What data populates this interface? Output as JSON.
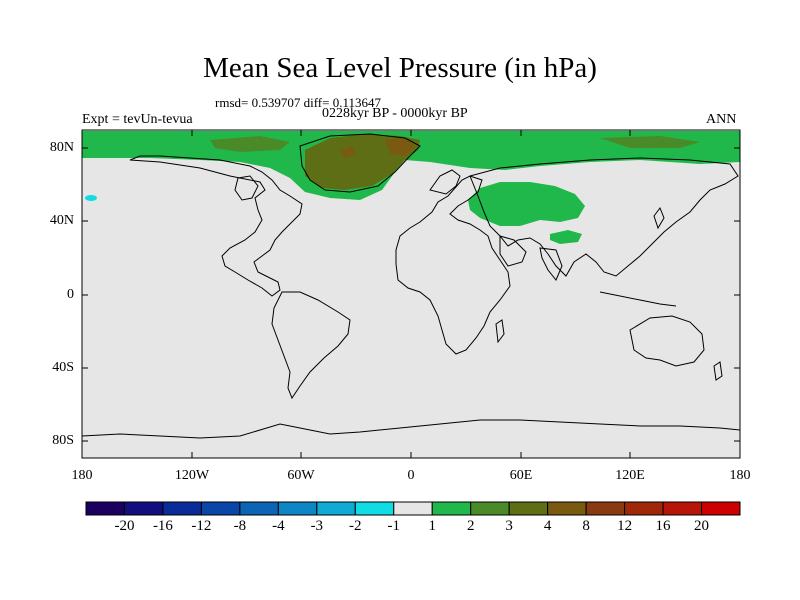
{
  "title": "Mean Sea Level Pressure (in hPa)",
  "stats": "rmsd= 0.539707 diff= 0.113647",
  "experiment": "Expt = tevUn-tevua",
  "period": "0228kyr BP - 0000kyr BP",
  "season": "ANN",
  "lat_ticks": [
    "80N",
    "40N",
    "0",
    "40S",
    "80S"
  ],
  "lon_ticks": [
    "180",
    "120W",
    "60W",
    "0",
    "60E",
    "120E",
    "180"
  ],
  "colorbar": {
    "labels": [
      "-20",
      "-16",
      "-12",
      "-8",
      "-4",
      "-3",
      "-2",
      "-1",
      "1",
      "2",
      "3",
      "4",
      "8",
      "12",
      "16",
      "20"
    ],
    "colors": [
      "#1b0060",
      "#120e80",
      "#0a2c98",
      "#0a46a8",
      "#0c64b4",
      "#0c86c4",
      "#10aad4",
      "#10dce4",
      "#e6e6e6",
      "#20b84a",
      "#4a8a28",
      "#5e6e14",
      "#7a5a10",
      "#8a3a10",
      "#a02808",
      "#b81408",
      "#cc0000"
    ]
  },
  "map_colors": {
    "background": "#e6e6e6",
    "increase_1_2": "#20b84a",
    "increase_2_3": "#4a8a28",
    "increase_3_4": "#5e6e14",
    "increase_4_8": "#7a5a10",
    "increase_8_12": "#8a3a10",
    "decrease_1_2": "#10dce4"
  }
}
